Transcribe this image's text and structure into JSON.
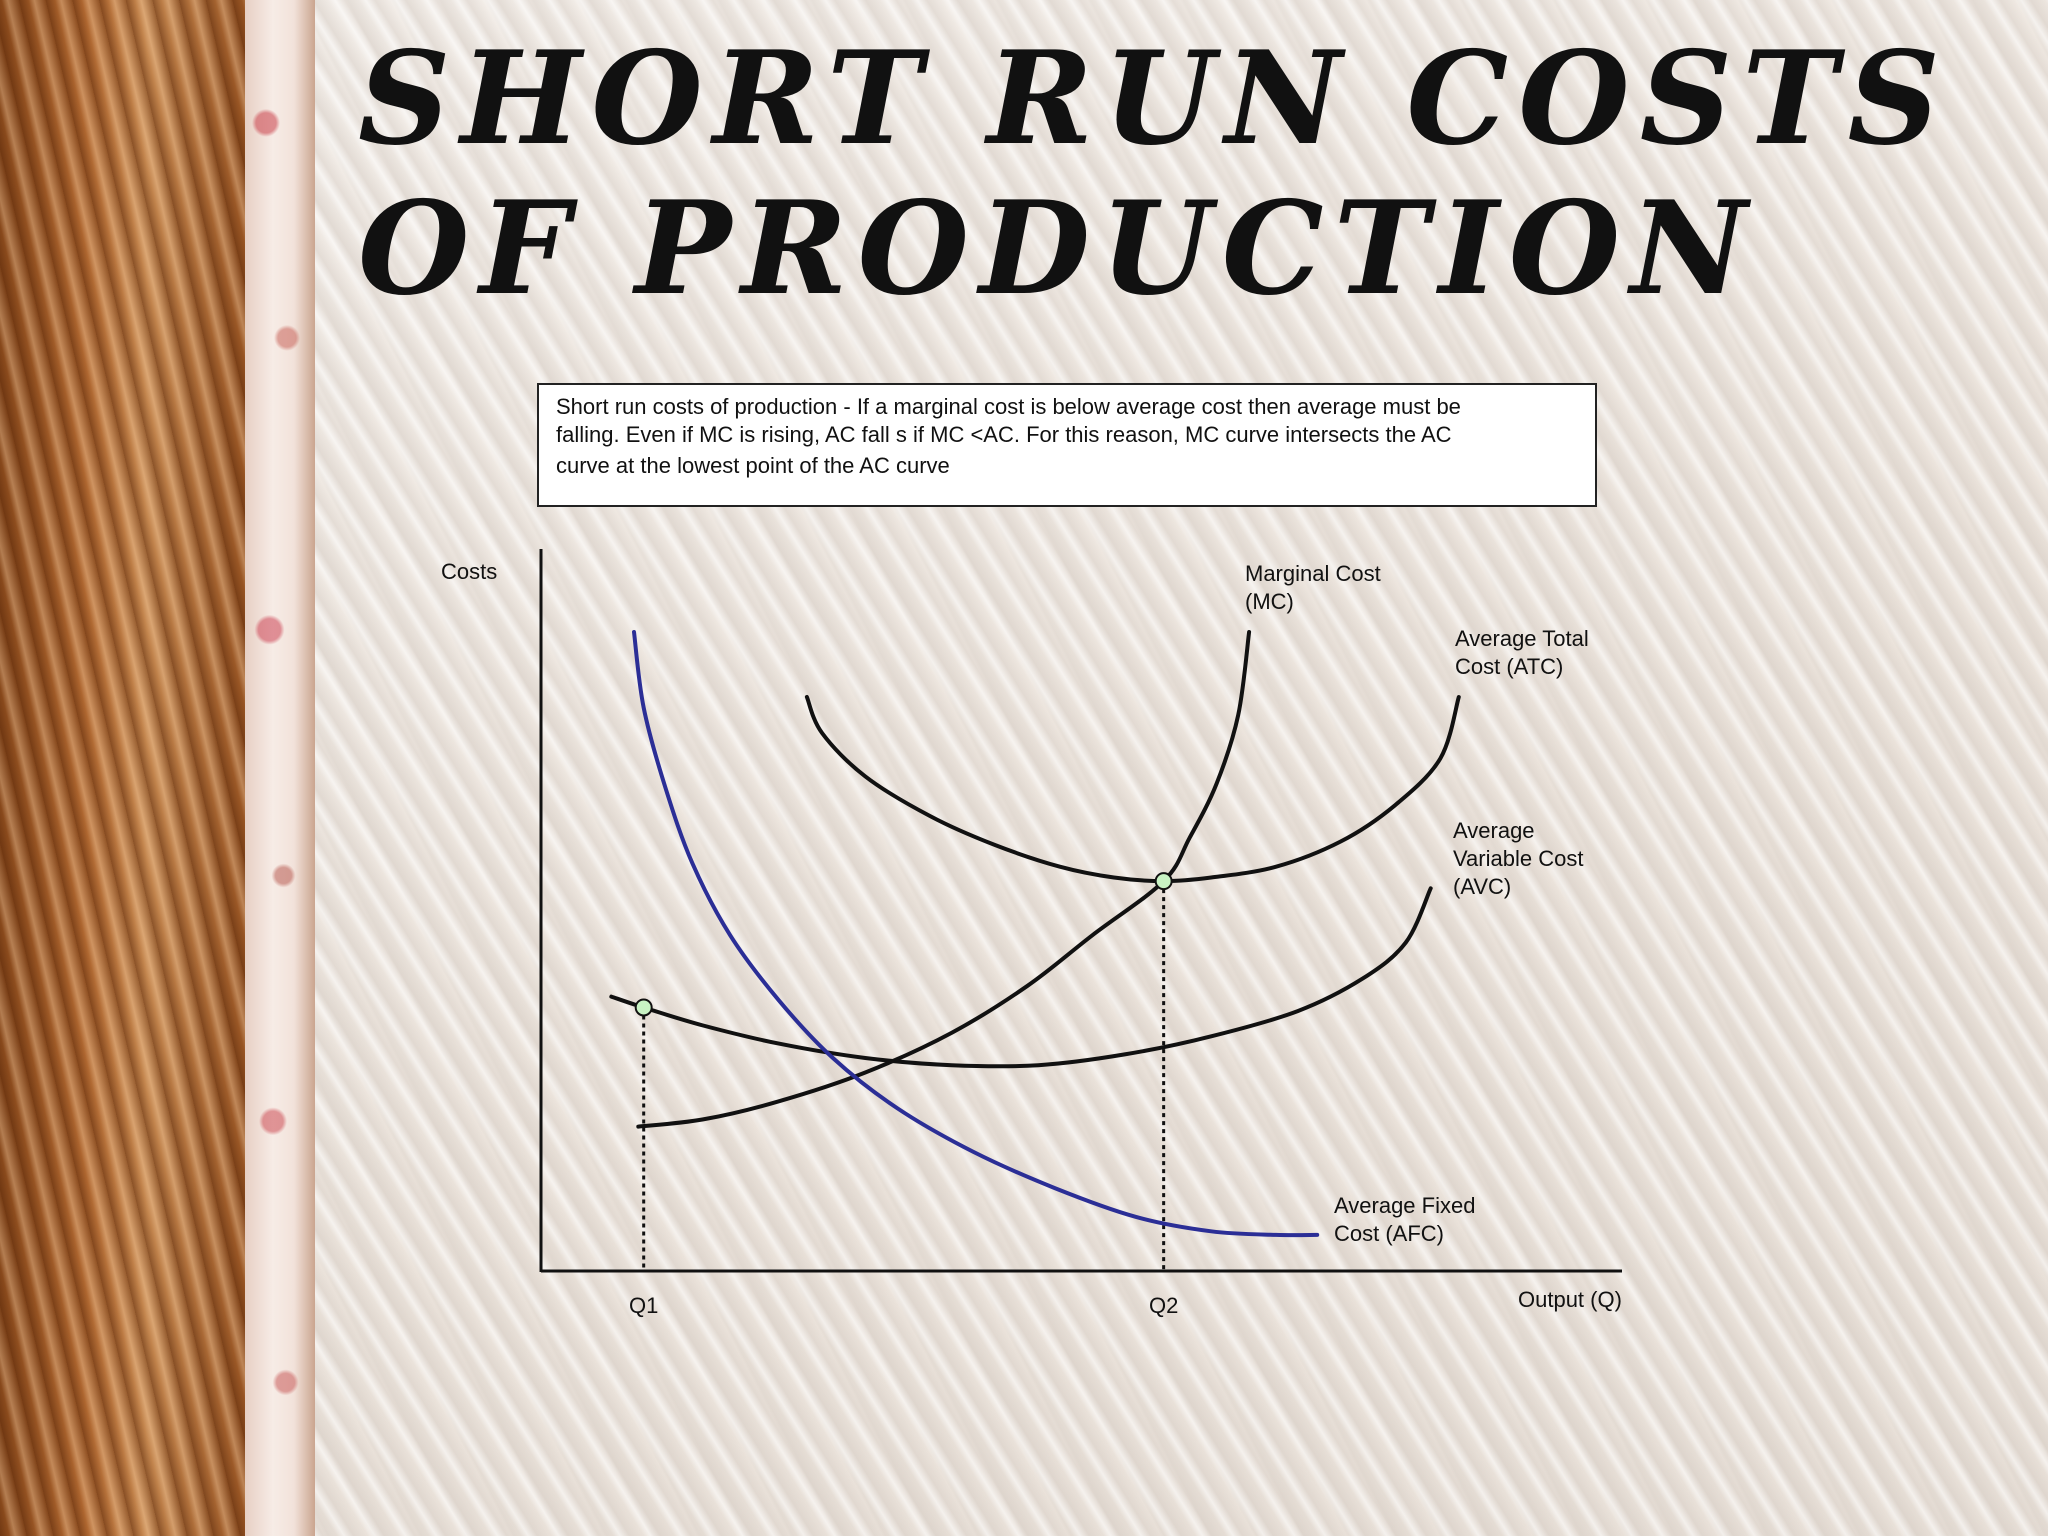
{
  "slide": {
    "title": "SHORT RUN COSTS OF PRODUCTION"
  },
  "chart_data": {
    "type": "line",
    "caption": [
      "Short run costs of production - If a marginal cost is below average cost then average must be",
      "falling. Even if MC is rising, AC fall s if MC <AC. For this reason, MC curve intersects the AC",
      "curve at the lowest point of the AC curve"
    ],
    "ylabel": "Costs",
    "xlabel": "Output (Q)",
    "xlim": [
      0,
      100
    ],
    "ylim": [
      0,
      100
    ],
    "ticks": [
      {
        "label": "Q1",
        "x": 9.5
      },
      {
        "label": "Q2",
        "x": 57.6
      }
    ],
    "series": [
      {
        "name": "Marginal Cost\n(MC)",
        "color": "#111111",
        "x": [
          9.0,
          15.0,
          22.0,
          30.0,
          38.0,
          45.0,
          51.0,
          57.6,
          60.0,
          62.5,
          64.5,
          65.5
        ],
        "y": [
          20.0,
          21.0,
          23.5,
          27.5,
          33.0,
          39.5,
          46.5,
          54.0,
          60.0,
          67.5,
          77.0,
          88.5
        ]
      },
      {
        "name": "Average Total\nCost (ATC)",
        "color": "#111111",
        "x": [
          24.6,
          26.0,
          30.0,
          36.0,
          42.0,
          48.0,
          53.0,
          57.6,
          62.0,
          68.0,
          74.0,
          79.0,
          83.2,
          84.9
        ],
        "y": [
          79.5,
          74.5,
          68.5,
          63.0,
          59.0,
          56.0,
          54.5,
          54.0,
          54.5,
          56.0,
          59.5,
          64.5,
          71.0,
          79.5
        ]
      },
      {
        "name": "Average\nVariable Cost\n(AVC)",
        "color": "#111111",
        "x": [
          6.5,
          9.5,
          15.0,
          22.0,
          30.0,
          38.0,
          46.0,
          54.0,
          62.0,
          70.0,
          76.0,
          80.0,
          82.3
        ],
        "y": [
          38.0,
          36.5,
          34.0,
          31.5,
          29.5,
          28.5,
          28.5,
          30.0,
          32.5,
          36.0,
          40.5,
          45.5,
          53.0
        ]
      },
      {
        "name": "Average Fixed\nCost (AFC)",
        "color": "#2b2e96",
        "x": [
          8.6,
          9.5,
          11.5,
          14.0,
          17.5,
          22.0,
          27.0,
          33.0,
          40.0,
          47.5,
          55.0,
          62.0,
          68.0,
          71.8
        ],
        "y": [
          88.5,
          78.0,
          67.0,
          56.5,
          46.5,
          37.5,
          29.5,
          22.5,
          16.5,
          11.5,
          7.5,
          5.5,
          5.0,
          5.0
        ]
      }
    ],
    "points": [
      {
        "x": 9.5,
        "y": 36.5
      },
      {
        "x": 57.6,
        "y": 54.0
      }
    ],
    "grid": false,
    "legend": "inline-labels"
  }
}
